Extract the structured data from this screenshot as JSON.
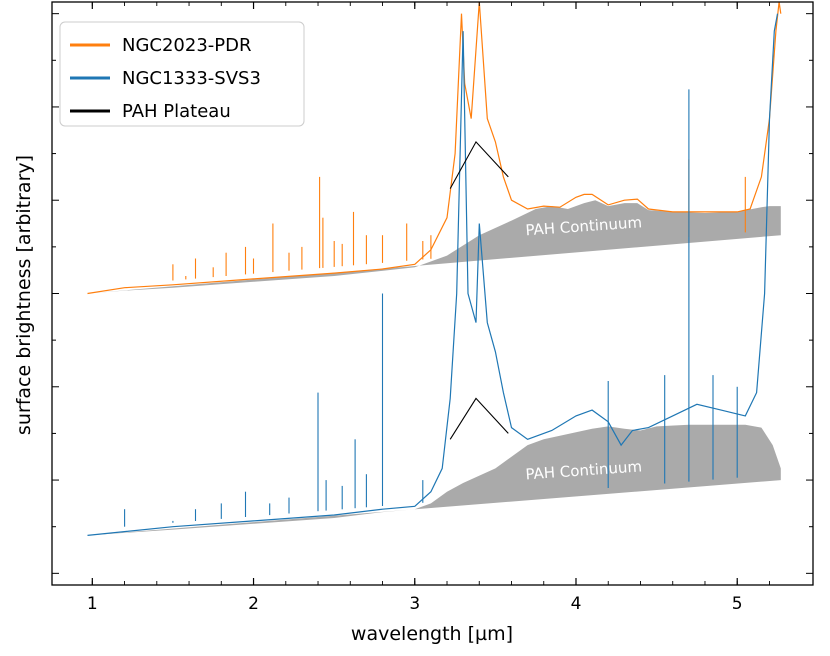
{
  "chart_data": {
    "type": "line",
    "title": "",
    "xlabel": "wavelength [µm]",
    "ylabel": "surface brightness [arbitrary]",
    "xlim": [
      0.75,
      5.47
    ],
    "ylim": [
      0,
      1
    ],
    "xticks": [
      1,
      2,
      3,
      4,
      5
    ],
    "ytick_labels_shown": false,
    "legend_position": "top-left",
    "legend": [
      {
        "name": "NGC2023-PDR",
        "color": "#ff7f0e"
      },
      {
        "name": "NGC1333-SVS3",
        "color": "#1f77b4"
      },
      {
        "name": "PAH Plateau",
        "color": "#000000"
      }
    ],
    "annotations": [
      {
        "text": "PAH Continuum",
        "series": "NGC2023-PDR"
      },
      {
        "text": "PAH Continuum",
        "series": "NGC1333-SVS3"
      }
    ],
    "series": [
      {
        "name": "NGC2023-PDR",
        "color": "#ff7f0e",
        "baseline": [
          [
            0.97,
            0.5
          ],
          [
            5.27,
            0.6
          ]
        ],
        "continuum": [
          [
            0.97,
            0.5
          ],
          [
            1.2,
            0.505
          ],
          [
            1.5,
            0.51
          ],
          [
            2.0,
            0.52
          ],
          [
            2.5,
            0.53
          ],
          [
            3.0,
            0.545
          ],
          [
            3.2,
            0.565
          ],
          [
            3.4,
            0.6
          ],
          [
            3.6,
            0.625
          ],
          [
            3.75,
            0.645
          ],
          [
            3.85,
            0.65
          ],
          [
            3.95,
            0.645
          ],
          [
            4.05,
            0.655
          ],
          [
            4.12,
            0.66
          ],
          [
            4.2,
            0.65
          ],
          [
            4.3,
            0.655
          ],
          [
            4.38,
            0.655
          ],
          [
            4.45,
            0.643
          ],
          [
            4.6,
            0.64
          ],
          [
            4.8,
            0.638
          ],
          [
            5.0,
            0.64
          ],
          [
            5.15,
            0.648
          ],
          [
            5.2,
            0.65
          ],
          [
            5.27,
            0.65
          ]
        ],
        "spectrum": [
          [
            0.97,
            0.5
          ],
          [
            1.2,
            0.51
          ],
          [
            1.5,
            0.515
          ],
          [
            2.0,
            0.525
          ],
          [
            2.5,
            0.535
          ],
          [
            2.8,
            0.542
          ],
          [
            3.0,
            0.55
          ],
          [
            3.1,
            0.575
          ],
          [
            3.2,
            0.63
          ],
          [
            3.25,
            0.74
          ],
          [
            3.29,
            0.98
          ],
          [
            3.31,
            0.86
          ],
          [
            3.35,
            0.8
          ],
          [
            3.4,
            1.0
          ],
          [
            3.45,
            0.8
          ],
          [
            3.5,
            0.76
          ],
          [
            3.55,
            0.7
          ],
          [
            3.6,
            0.66
          ],
          [
            3.7,
            0.645
          ],
          [
            3.8,
            0.65
          ],
          [
            3.9,
            0.648
          ],
          [
            4.0,
            0.665
          ],
          [
            4.05,
            0.67
          ],
          [
            4.1,
            0.67
          ],
          [
            4.2,
            0.652
          ],
          [
            4.3,
            0.66
          ],
          [
            4.38,
            0.662
          ],
          [
            4.45,
            0.645
          ],
          [
            4.6,
            0.64
          ],
          [
            4.8,
            0.64
          ],
          [
            5.0,
            0.64
          ],
          [
            5.08,
            0.645
          ],
          [
            5.15,
            0.7
          ],
          [
            5.2,
            0.8
          ],
          [
            5.24,
            0.95
          ],
          [
            5.26,
            1.0
          ],
          [
            5.27,
            0.98
          ]
        ],
        "plateau": [
          [
            3.22,
            0.68
          ],
          [
            3.38,
            0.76
          ],
          [
            3.58,
            0.7
          ]
        ],
        "emission_lines": [
          [
            1.5,
            0.55
          ],
          [
            1.58,
            0.53
          ],
          [
            1.64,
            0.56
          ],
          [
            1.75,
            0.545
          ],
          [
            1.83,
            0.57
          ],
          [
            1.95,
            0.58
          ],
          [
            2.0,
            0.56
          ],
          [
            2.12,
            0.62
          ],
          [
            2.22,
            0.57
          ],
          [
            2.3,
            0.58
          ],
          [
            2.41,
            0.7
          ],
          [
            2.43,
            0.63
          ],
          [
            2.5,
            0.59
          ],
          [
            2.55,
            0.585
          ],
          [
            2.62,
            0.64
          ],
          [
            2.7,
            0.6
          ],
          [
            2.8,
            0.6
          ],
          [
            2.95,
            0.62
          ],
          [
            3.05,
            0.59
          ],
          [
            3.1,
            0.6
          ],
          [
            4.7,
            0.73
          ],
          [
            5.05,
            0.7
          ]
        ]
      },
      {
        "name": "NGC1333-SVS3",
        "color": "#1f77b4",
        "baseline": [
          [
            0.97,
            0.085
          ],
          [
            5.27,
            0.18
          ]
        ],
        "continuum": [
          [
            0.97,
            0.085
          ],
          [
            1.5,
            0.095
          ],
          [
            2.0,
            0.105
          ],
          [
            2.5,
            0.115
          ],
          [
            2.8,
            0.125
          ],
          [
            3.0,
            0.13
          ],
          [
            3.1,
            0.14
          ],
          [
            3.2,
            0.16
          ],
          [
            3.3,
            0.175
          ],
          [
            3.5,
            0.2
          ],
          [
            3.7,
            0.24
          ],
          [
            3.8,
            0.25
          ],
          [
            3.9,
            0.256
          ],
          [
            4.0,
            0.262
          ],
          [
            4.1,
            0.268
          ],
          [
            4.2,
            0.272
          ],
          [
            4.3,
            0.268
          ],
          [
            4.4,
            0.265
          ],
          [
            4.5,
            0.272
          ],
          [
            4.7,
            0.275
          ],
          [
            4.9,
            0.275
          ],
          [
            5.05,
            0.275
          ],
          [
            5.15,
            0.27
          ],
          [
            5.22,
            0.24
          ],
          [
            5.27,
            0.2
          ]
        ],
        "spectrum": [
          [
            0.97,
            0.085
          ],
          [
            1.5,
            0.1
          ],
          [
            2.0,
            0.11
          ],
          [
            2.5,
            0.12
          ],
          [
            2.8,
            0.13
          ],
          [
            3.0,
            0.135
          ],
          [
            3.1,
            0.16
          ],
          [
            3.17,
            0.2
          ],
          [
            3.22,
            0.32
          ],
          [
            3.26,
            0.5
          ],
          [
            3.3,
            0.95
          ],
          [
            3.33,
            0.5
          ],
          [
            3.38,
            0.45
          ],
          [
            3.4,
            0.62
          ],
          [
            3.45,
            0.45
          ],
          [
            3.5,
            0.4
          ],
          [
            3.55,
            0.33
          ],
          [
            3.6,
            0.27
          ],
          [
            3.7,
            0.25
          ],
          [
            3.85,
            0.265
          ],
          [
            4.0,
            0.29
          ],
          [
            4.1,
            0.3
          ],
          [
            4.2,
            0.28
          ],
          [
            4.28,
            0.24
          ],
          [
            4.35,
            0.265
          ],
          [
            4.45,
            0.27
          ],
          [
            4.6,
            0.29
          ],
          [
            4.75,
            0.31
          ],
          [
            4.9,
            0.3
          ],
          [
            5.05,
            0.29
          ],
          [
            5.12,
            0.33
          ],
          [
            5.17,
            0.5
          ],
          [
            5.2,
            0.8
          ],
          [
            5.23,
            0.95
          ],
          [
            5.25,
            0.98
          ]
        ],
        "plateau": [
          [
            3.22,
            0.25
          ],
          [
            3.38,
            0.32
          ],
          [
            3.58,
            0.26
          ]
        ],
        "emission_lines": [
          [
            1.2,
            0.13
          ],
          [
            1.5,
            0.11
          ],
          [
            1.64,
            0.13
          ],
          [
            1.8,
            0.14
          ],
          [
            1.95,
            0.16
          ],
          [
            2.1,
            0.14
          ],
          [
            2.22,
            0.15
          ],
          [
            2.4,
            0.33
          ],
          [
            2.45,
            0.18
          ],
          [
            2.55,
            0.17
          ],
          [
            2.63,
            0.25
          ],
          [
            2.7,
            0.19
          ],
          [
            2.8,
            0.5
          ],
          [
            3.05,
            0.18
          ],
          [
            4.2,
            0.35
          ],
          [
            4.55,
            0.36
          ],
          [
            4.7,
            0.85
          ],
          [
            4.85,
            0.36
          ],
          [
            5.0,
            0.34
          ]
        ]
      }
    ]
  }
}
